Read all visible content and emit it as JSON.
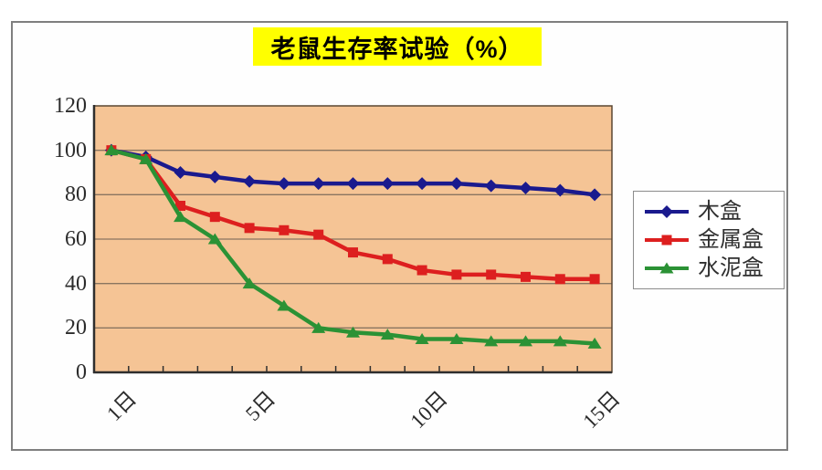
{
  "chart_data": {
    "type": "line",
    "title": "老鼠生存率试验（%）",
    "xlabel": "",
    "ylabel": "",
    "x": [
      1,
      2,
      3,
      4,
      5,
      6,
      7,
      8,
      9,
      10,
      11,
      12,
      13,
      14,
      15
    ],
    "x_tick_labels": [
      {
        "day": 1,
        "label": "1日"
      },
      {
        "day": 5,
        "label": "5日"
      },
      {
        "day": 10,
        "label": "10日"
      },
      {
        "day": 15,
        "label": "15日"
      }
    ],
    "y_ticks": [
      0,
      20,
      40,
      60,
      80,
      100,
      120
    ],
    "ylim": [
      0,
      120
    ],
    "grid": true,
    "legend_position": "right",
    "series": [
      {
        "name": "木盒",
        "marker": "diamond",
        "color": "#1a1a8e",
        "values": [
          100,
          97,
          90,
          88,
          86,
          85,
          85,
          85,
          85,
          85,
          85,
          84,
          83,
          82,
          80
        ]
      },
      {
        "name": "金属盒",
        "marker": "square",
        "color": "#dd1f1f",
        "values": [
          100,
          96,
          75,
          70,
          65,
          64,
          62,
          54,
          51,
          46,
          44,
          44,
          43,
          42,
          42
        ]
      },
      {
        "name": "水泥盒",
        "marker": "triangle",
        "color": "#2b9235",
        "values": [
          100,
          96,
          70,
          60,
          40,
          30,
          20,
          18,
          17,
          15,
          15,
          14,
          14,
          14,
          13
        ]
      }
    ],
    "colors": {
      "plot_bg": "#f5c495",
      "gridline": "#8a7560",
      "plot_border": "#5a4632",
      "axis": "#2e2e2e",
      "title_bg": "#ffff00",
      "title_text": "#000000",
      "tick_text": "#2b2b2b",
      "legend_border": "#8c8c8c",
      "frame_border": "#7f7f7f"
    }
  }
}
